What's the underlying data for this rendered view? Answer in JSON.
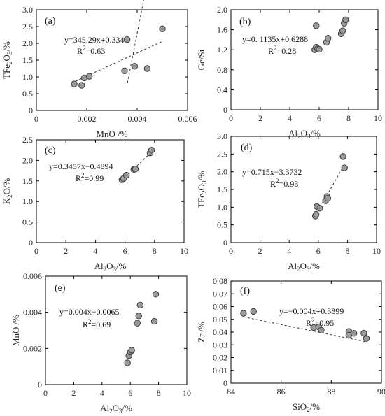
{
  "chart_data": [
    {
      "id": "a",
      "type": "scatter",
      "panel_label": "(a)",
      "equation": "y=345.29x+0.334",
      "r2_prefix": "R",
      "r2_sup": "2",
      "r2_value": "=0.63",
      "xlabel": {
        "main": "MnO /%",
        "sub": ""
      },
      "ylabel": {
        "pre": "TFe",
        "sub": "2",
        "mid": "O",
        "sub2": "3",
        "post": "/%"
      },
      "xlim": [
        0,
        0.006
      ],
      "ylim": [
        0,
        3.0
      ],
      "xticks": [
        "0",
        "0.002",
        "0.004",
        "0.006"
      ],
      "xtick_values": [
        0,
        0.002,
        0.004,
        0.006
      ],
      "yticks": [
        "0",
        "0.5",
        "1.0",
        "1.5",
        "2.0",
        "2.5",
        "3.0"
      ],
      "ytick_values": [
        0,
        0.5,
        1.0,
        1.5,
        2.0,
        2.5,
        3.0
      ],
      "points": [
        [
          0.0015,
          0.79
        ],
        [
          0.0018,
          0.75
        ],
        [
          0.0019,
          0.97
        ],
        [
          0.0021,
          1.02
        ],
        [
          0.0035,
          1.18
        ],
        [
          0.0036,
          2.11
        ],
        [
          0.0039,
          1.32
        ],
        [
          0.0044,
          1.25
        ],
        [
          0.005,
          2.43
        ]
      ],
      "trend": {
        "slope": 345.29,
        "intercept": 0.334,
        "x_range": [
          0.0014,
          0.005
        ]
      }
    },
    {
      "id": "b",
      "type": "scatter",
      "panel_label": "(b)",
      "equation": "y=0. 1135x+0.6288",
      "r2_prefix": "R",
      "r2_sup": "2",
      "r2_value": "=0.28",
      "xlabel": {
        "pre": "Al",
        "sub": "2",
        "mid": "O",
        "sub2": "3",
        "post": "/%"
      },
      "ylabel": {
        "main": "Ge/Si"
      },
      "xlim": [
        0,
        10
      ],
      "ylim": [
        0,
        2.0
      ],
      "xticks": [
        "0",
        "2",
        "4",
        "6",
        "8",
        "10"
      ],
      "xtick_values": [
        0,
        2,
        4,
        6,
        8,
        10
      ],
      "yticks": [
        "0",
        "0.4",
        "0.8",
        "1.2",
        "1.6",
        "2.0"
      ],
      "ytick_values": [
        0,
        0.4,
        0.8,
        1.2,
        1.6,
        2.0
      ],
      "points": [
        [
          5.7,
          1.2
        ],
        [
          5.8,
          1.25
        ],
        [
          5.9,
          1.22
        ],
        [
          6.0,
          1.21
        ],
        [
          5.8,
          1.68
        ],
        [
          6.5,
          1.35
        ],
        [
          6.6,
          1.43
        ],
        [
          7.5,
          1.52
        ],
        [
          7.6,
          1.58
        ],
        [
          7.7,
          1.73
        ],
        [
          7.8,
          1.8
        ]
      ],
      "trend": null
    },
    {
      "id": "c",
      "type": "scatter",
      "panel_label": "(c)",
      "equation": "y=0.3457x−0.4894",
      "r2_prefix": "R",
      "r2_sup": "2",
      "r2_value": "=0.99",
      "xlabel": {
        "pre": "Al",
        "sub": "2",
        "mid": "O",
        "sub2": "3",
        "post": "/%"
      },
      "ylabel": {
        "pre": "K",
        "sub": "2",
        "mid": "O",
        "sub2": "",
        "post": "/%"
      },
      "xlim": [
        0,
        10
      ],
      "ylim": [
        0,
        2.5
      ],
      "xticks": [
        "0",
        "2",
        "4",
        "6",
        "8",
        "10"
      ],
      "xtick_values": [
        0,
        2,
        4,
        6,
        8,
        10
      ],
      "yticks": [
        "0",
        "0.5",
        "1.0",
        "1.5",
        "2.0",
        "2.5"
      ],
      "ytick_values": [
        0,
        0.5,
        1.0,
        1.5,
        2.0,
        2.5
      ],
      "points": [
        [
          5.8,
          1.53
        ],
        [
          5.9,
          1.56
        ],
        [
          6.1,
          1.64
        ],
        [
          6.6,
          1.78
        ],
        [
          6.7,
          1.79
        ],
        [
          7.7,
          2.18
        ],
        [
          7.8,
          2.25
        ]
      ],
      "trend": {
        "slope": 0.3457,
        "intercept": -0.4894,
        "x_range": [
          5.8,
          7.9
        ]
      }
    },
    {
      "id": "d",
      "type": "scatter",
      "panel_label": "(d)",
      "equation": "y=0.715x−3.3732",
      "r2_prefix": "R",
      "r2_sup": "2",
      "r2_value": "=0.93",
      "xlabel": {
        "pre": "Al",
        "sub": "2",
        "mid": "O",
        "sub2": "3",
        "post": "/%"
      },
      "ylabel": {
        "pre": "TFe",
        "sub": "2",
        "mid": "O",
        "sub2": "3",
        "post": "/%"
      },
      "xlim": [
        0,
        10
      ],
      "ylim": [
        0,
        3.0
      ],
      "xticks": [
        "0",
        "2",
        "4",
        "6",
        "8",
        "10"
      ],
      "xtick_values": [
        0,
        2,
        4,
        6,
        8,
        10
      ],
      "yticks": [
        "0",
        "0.5",
        "1.0",
        "1.5",
        "2.0",
        "2.5",
        "3.0"
      ],
      "ytick_values": [
        0,
        0.5,
        1.0,
        1.5,
        2.0,
        2.5,
        3.0
      ],
      "points": [
        [
          5.8,
          0.75
        ],
        [
          5.85,
          0.8
        ],
        [
          5.9,
          1.02
        ],
        [
          6.1,
          0.97
        ],
        [
          6.5,
          1.18
        ],
        [
          6.6,
          1.3
        ],
        [
          6.65,
          1.25
        ],
        [
          7.7,
          2.43
        ],
        [
          7.8,
          2.11
        ]
      ],
      "trend": {
        "slope": 0.715,
        "intercept": -3.3732,
        "x_range": [
          5.7,
          7.85
        ]
      }
    },
    {
      "id": "e",
      "type": "scatter",
      "panel_label": "(e)",
      "equation": "y=0.004x−0.0065",
      "r2_prefix": "R",
      "r2_sup": "2",
      "r2_value": "=0.69",
      "xlabel": {
        "pre": "Al",
        "sub": "2",
        "mid": "O",
        "sub2": "3",
        "post": "/%"
      },
      "ylabel": {
        "main": "MnO /%"
      },
      "xlim": [
        0,
        10
      ],
      "ylim": [
        0,
        0.006
      ],
      "xticks": [
        "0",
        "2",
        "4",
        "6",
        "8",
        "10"
      ],
      "xtick_values": [
        0,
        2,
        4,
        6,
        8,
        10
      ],
      "yticks": [
        "0",
        "0.002",
        "0.004",
        "0.006"
      ],
      "ytick_values": [
        0,
        0.002,
        0.004,
        0.006
      ],
      "points": [
        [
          5.8,
          0.0012
        ],
        [
          5.9,
          0.0016
        ],
        [
          6.0,
          0.0018
        ],
        [
          6.1,
          0.0019
        ],
        [
          6.5,
          0.0034
        ],
        [
          6.6,
          0.0038
        ],
        [
          6.7,
          0.0044
        ],
        [
          7.7,
          0.0035
        ],
        [
          7.8,
          0.005
        ]
      ],
      "trend": {
        "slope": 0.004,
        "intercept": -0.0065,
        "x_range": [
          5.8,
          7.85
        ]
      }
    },
    {
      "id": "f",
      "type": "scatter",
      "panel_label": "(f)",
      "equation": "y=−0.004x+0.3899",
      "r2_prefix": "R",
      "r2_sup": "2",
      "r2_value": "=0.95",
      "xlabel": {
        "pre": "SiO",
        "sub": "2",
        "mid": "",
        "sub2": "",
        "post": "/%"
      },
      "ylabel": {
        "main": "Zr /%"
      },
      "xlim": [
        84,
        90
      ],
      "ylim": [
        0,
        0.08
      ],
      "xticks": [
        "84",
        "86",
        "88",
        "90"
      ],
      "xtick_values": [
        84,
        86,
        88,
        90
      ],
      "yticks": [
        "0",
        "0.01",
        "0.02",
        "0.03",
        "0.04",
        "0.05",
        "0.06",
        "0.07",
        "0.08"
      ],
      "ytick_values": [
        0,
        0.01,
        0.02,
        0.03,
        0.04,
        0.05,
        0.06,
        0.07,
        0.08
      ],
      "points": [
        [
          84.5,
          0.0548
        ],
        [
          84.9,
          0.0562
        ],
        [
          87.3,
          0.0435
        ],
        [
          87.5,
          0.044
        ],
        [
          87.6,
          0.0415
        ],
        [
          88.7,
          0.0405
        ],
        [
          88.7,
          0.0375
        ],
        [
          88.9,
          0.039
        ],
        [
          89.3,
          0.0392
        ],
        [
          89.4,
          0.035
        ]
      ],
      "trend": {
        "slope": -0.004,
        "intercept": 0.3899,
        "x_range": [
          84.5,
          89.4
        ]
      }
    }
  ]
}
